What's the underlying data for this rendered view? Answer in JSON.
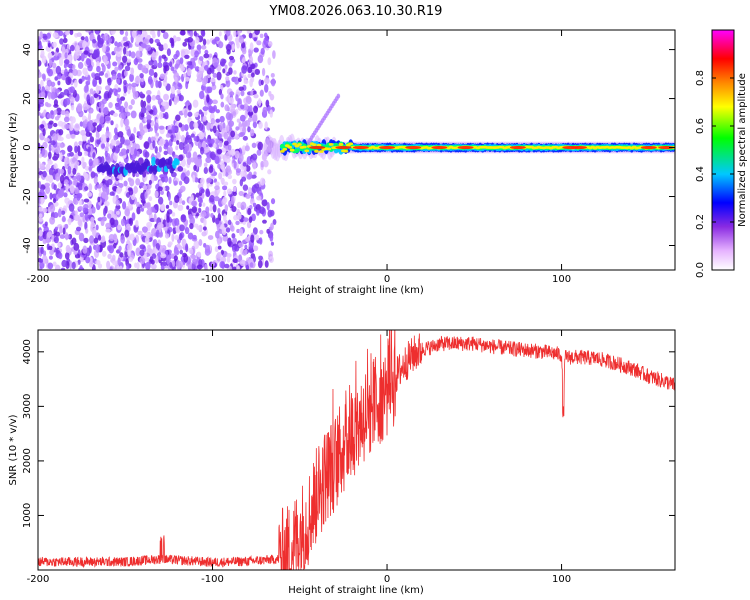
{
  "title": "YM08.2026.063.10.30.R19",
  "chart_data": [
    {
      "type": "heatmap",
      "xlabel": "Height of straight line (km)",
      "ylabel": "Frequency (Hz)",
      "xlim": [
        -200,
        165
      ],
      "ylim": [
        -50,
        48
      ],
      "xticks": [
        -200,
        -100,
        0,
        100
      ],
      "xtick_labels": [
        "-200",
        "-100",
        "0",
        "100"
      ],
      "yticks": [
        -40,
        -20,
        0,
        20,
        40
      ],
      "ytick_labels": [
        "-40",
        "-20",
        "0",
        "20",
        "40"
      ],
      "colorbar": {
        "label": "Normalized spectral amplitude",
        "range": [
          0,
          1
        ],
        "ticks": [
          0.0,
          0.2,
          0.4,
          0.6,
          0.8
        ],
        "tick_labels": [
          "0.0",
          "0.2",
          "0.4",
          "0.6",
          "0.8"
        ],
        "colors": [
          "#ffffff",
          "#e6b3ff",
          "#8a2be2",
          "#0000ff",
          "#00c8ff",
          "#00ff00",
          "#ffff00",
          "#ff8800",
          "#ff0000",
          "#ff00ff"
        ]
      },
      "features": [
        {
          "name": "noise-region",
          "x_range": [
            -200,
            -64
          ],
          "f_range": [
            -50,
            48
          ]
        },
        {
          "name": "early-trace",
          "x_range": [
            -165,
            -120
          ],
          "center_hz": -8
        },
        {
          "name": "main-trace",
          "x_range": [
            -70,
            165
          ],
          "center_hz": 0
        }
      ]
    },
    {
      "type": "line",
      "xlabel": "Height of straight line (km)",
      "ylabel": "SNR (10 * v/v)",
      "xlim": [
        -200,
        165
      ],
      "ylim": [
        0,
        4400
      ],
      "xticks": [
        -200,
        -100,
        0,
        100
      ],
      "xtick_labels": [
        "-200",
        "-100",
        "0",
        "100"
      ],
      "yticks": [
        1000,
        2000,
        3000,
        4000
      ],
      "ytick_labels": [
        "1000",
        "2000",
        "3000",
        "4000"
      ],
      "color": "#ee2e2e",
      "series": [
        {
          "name": "SNR",
          "x": [
            -200,
            -150,
            -130,
            -100,
            -80,
            -62,
            -55,
            -45,
            -40,
            -35,
            -30,
            -25,
            -20,
            -15,
            -10,
            -5,
            0,
            5,
            10,
            15,
            20,
            25,
            30,
            40,
            50,
            60,
            70,
            80,
            90,
            100,
            101,
            102,
            110,
            120,
            130,
            140,
            150,
            160,
            165
          ],
          "values": [
            150,
            150,
            200,
            140,
            160,
            200,
            380,
            950,
            1400,
            1750,
            1950,
            2250,
            2550,
            2750,
            2950,
            3150,
            3300,
            3550,
            3780,
            3950,
            4050,
            4080,
            4150,
            4150,
            4150,
            4100,
            4060,
            4030,
            4000,
            3950,
            3000,
            3900,
            3900,
            3880,
            3800,
            3700,
            3550,
            3450,
            3380
          ]
        }
      ]
    }
  ]
}
